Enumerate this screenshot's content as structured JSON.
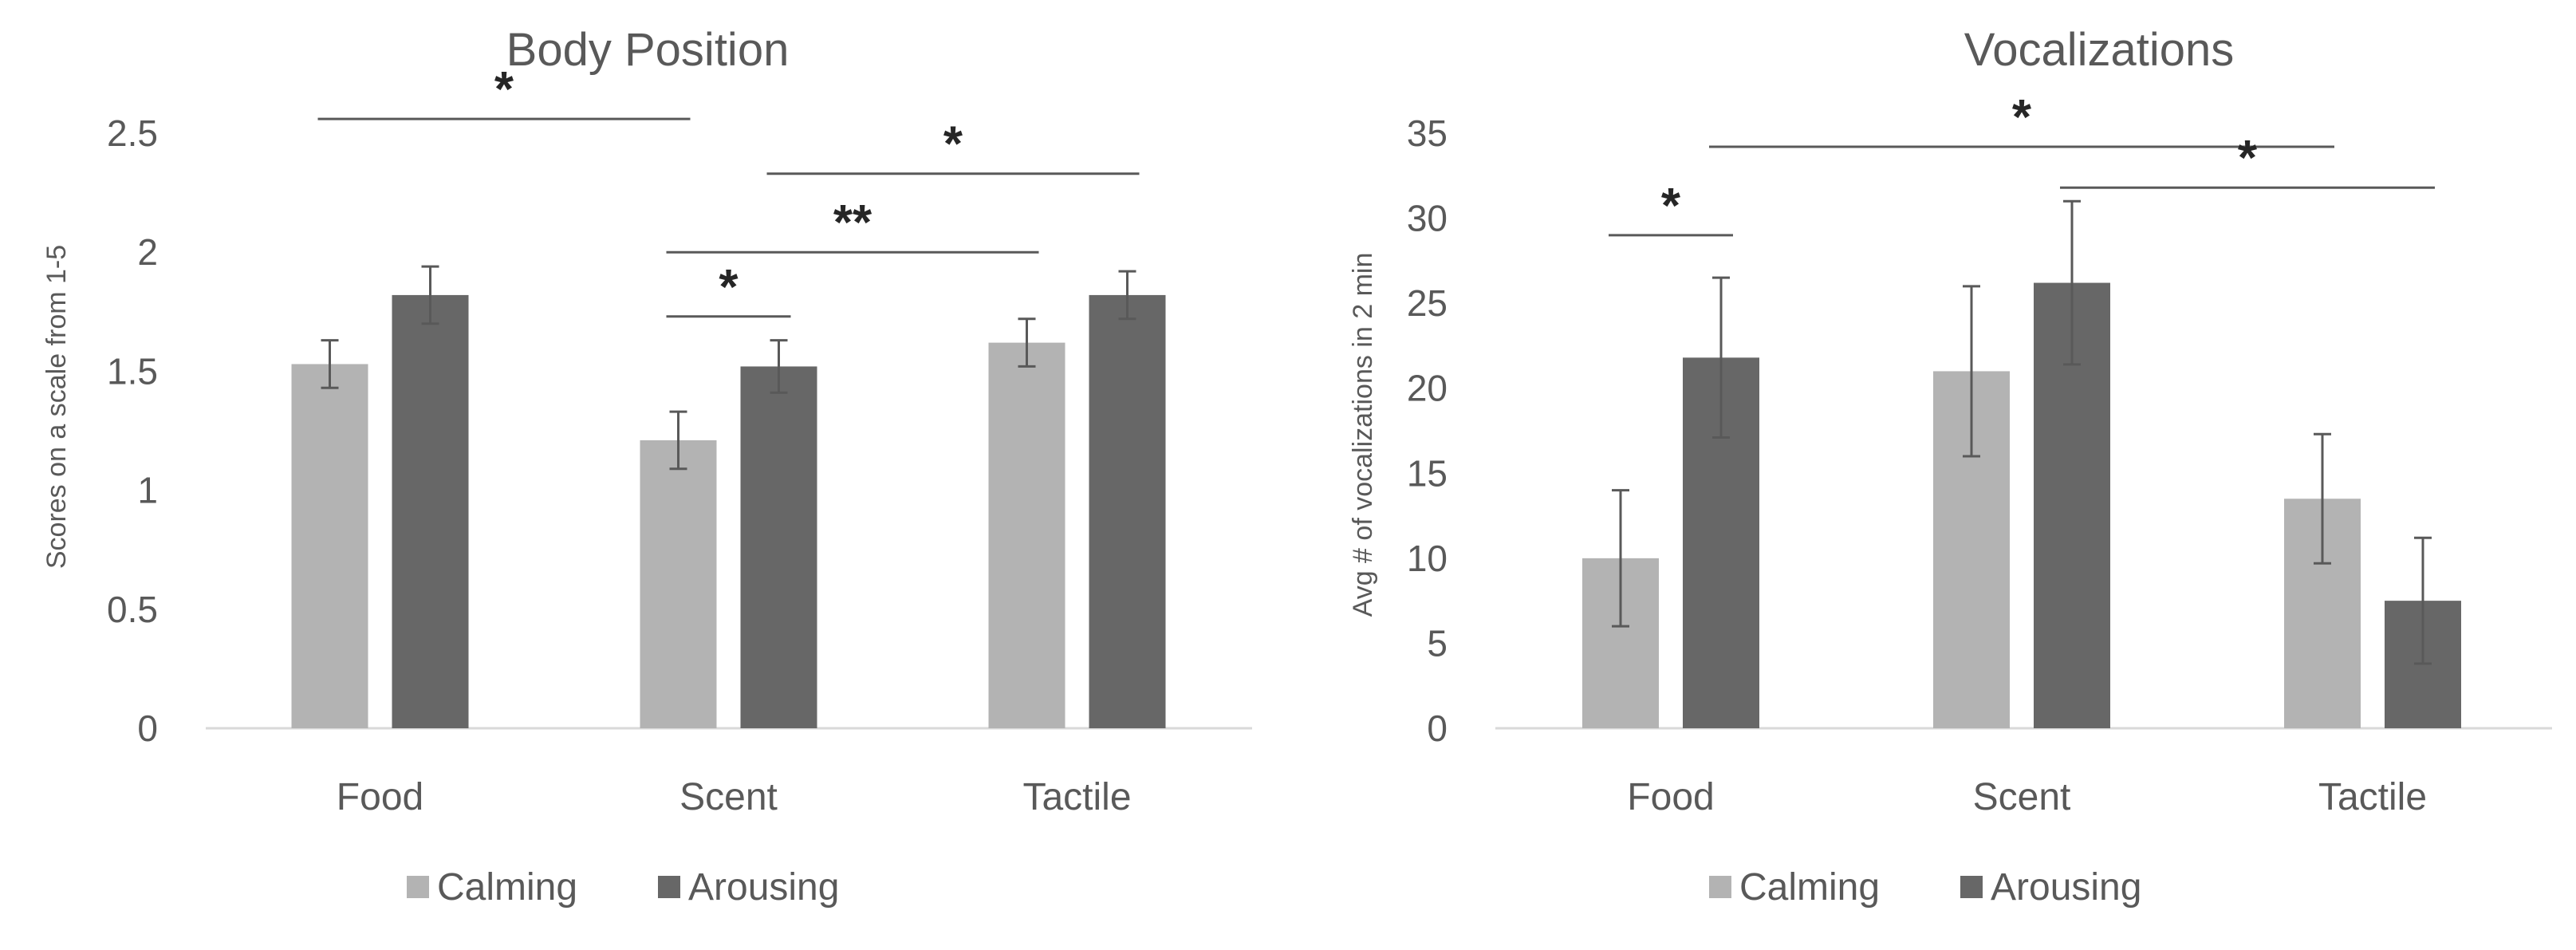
{
  "chart_data": [
    {
      "type": "bar",
      "title": "Body Position",
      "xlabel": "",
      "ylabel": "Scores on a scale from 1-5",
      "ylim": [
        0,
        2.5
      ],
      "yticks": [
        "0",
        "0.5",
        "1",
        "1.5",
        "2",
        "2.5"
      ],
      "categories": [
        "Food",
        "Scent",
        "Tactile"
      ],
      "series": [
        {
          "name": "Calming",
          "color": "#b3b3b3",
          "values": [
            1.53,
            1.21,
            1.62
          ],
          "errors": [
            0.1,
            0.12,
            0.1
          ]
        },
        {
          "name": "Arousing",
          "color": "#676767",
          "values": [
            1.82,
            1.52,
            1.82
          ],
          "errors": [
            0.12,
            0.11,
            0.1
          ]
        }
      ],
      "legend": {
        "position": "bottom"
      },
      "annotations": [
        {
          "label": "*",
          "from": [
            "Food",
            "Calming"
          ],
          "to": [
            "Scent",
            "Calming"
          ],
          "level": 2.56
        },
        {
          "label": "*",
          "from": [
            "Scent",
            "Arousing"
          ],
          "to": [
            "Tactile",
            "Arousing"
          ],
          "level": 2.33
        },
        {
          "label": "**",
          "from": [
            "Scent",
            "Calming"
          ],
          "to": [
            "Tactile",
            "Calming"
          ],
          "level": 2.0
        },
        {
          "label": "*",
          "from": [
            "Scent",
            "Calming"
          ],
          "to": [
            "Scent",
            "Arousing"
          ],
          "level": 1.73
        }
      ]
    },
    {
      "type": "bar",
      "title": "Vocalizations",
      "xlabel": "",
      "ylabel": "Avg # of vocalizations in 2 min",
      "ylim": [
        0,
        35
      ],
      "yticks": [
        "0",
        "5",
        "10",
        "15",
        "20",
        "25",
        "30",
        "35"
      ],
      "categories": [
        "Food",
        "Scent",
        "Tactile"
      ],
      "series": [
        {
          "name": "Calming",
          "color": "#b3b3b3",
          "values": [
            10,
            21,
            13.5
          ],
          "errors": [
            4,
            5,
            3.8
          ]
        },
        {
          "name": "Arousing",
          "color": "#676767",
          "values": [
            21.8,
            26.2,
            7.5
          ],
          "errors": [
            4.7,
            4.8,
            3.7
          ]
        }
      ],
      "legend": {
        "position": "bottom"
      },
      "annotations": [
        {
          "label": "*",
          "from": [
            "Food",
            "Calming"
          ],
          "to": [
            "Food",
            "Arousing"
          ],
          "level": 29
        },
        {
          "label": "*",
          "from": [
            "Food",
            "Arousing"
          ],
          "to": [
            "Tactile",
            "Calming"
          ],
          "level": 34.2
        },
        {
          "label": "*",
          "from": [
            "Scent",
            "Arousing"
          ],
          "to": [
            "Tactile",
            "Arousing"
          ],
          "level": 31.8
        }
      ]
    }
  ]
}
